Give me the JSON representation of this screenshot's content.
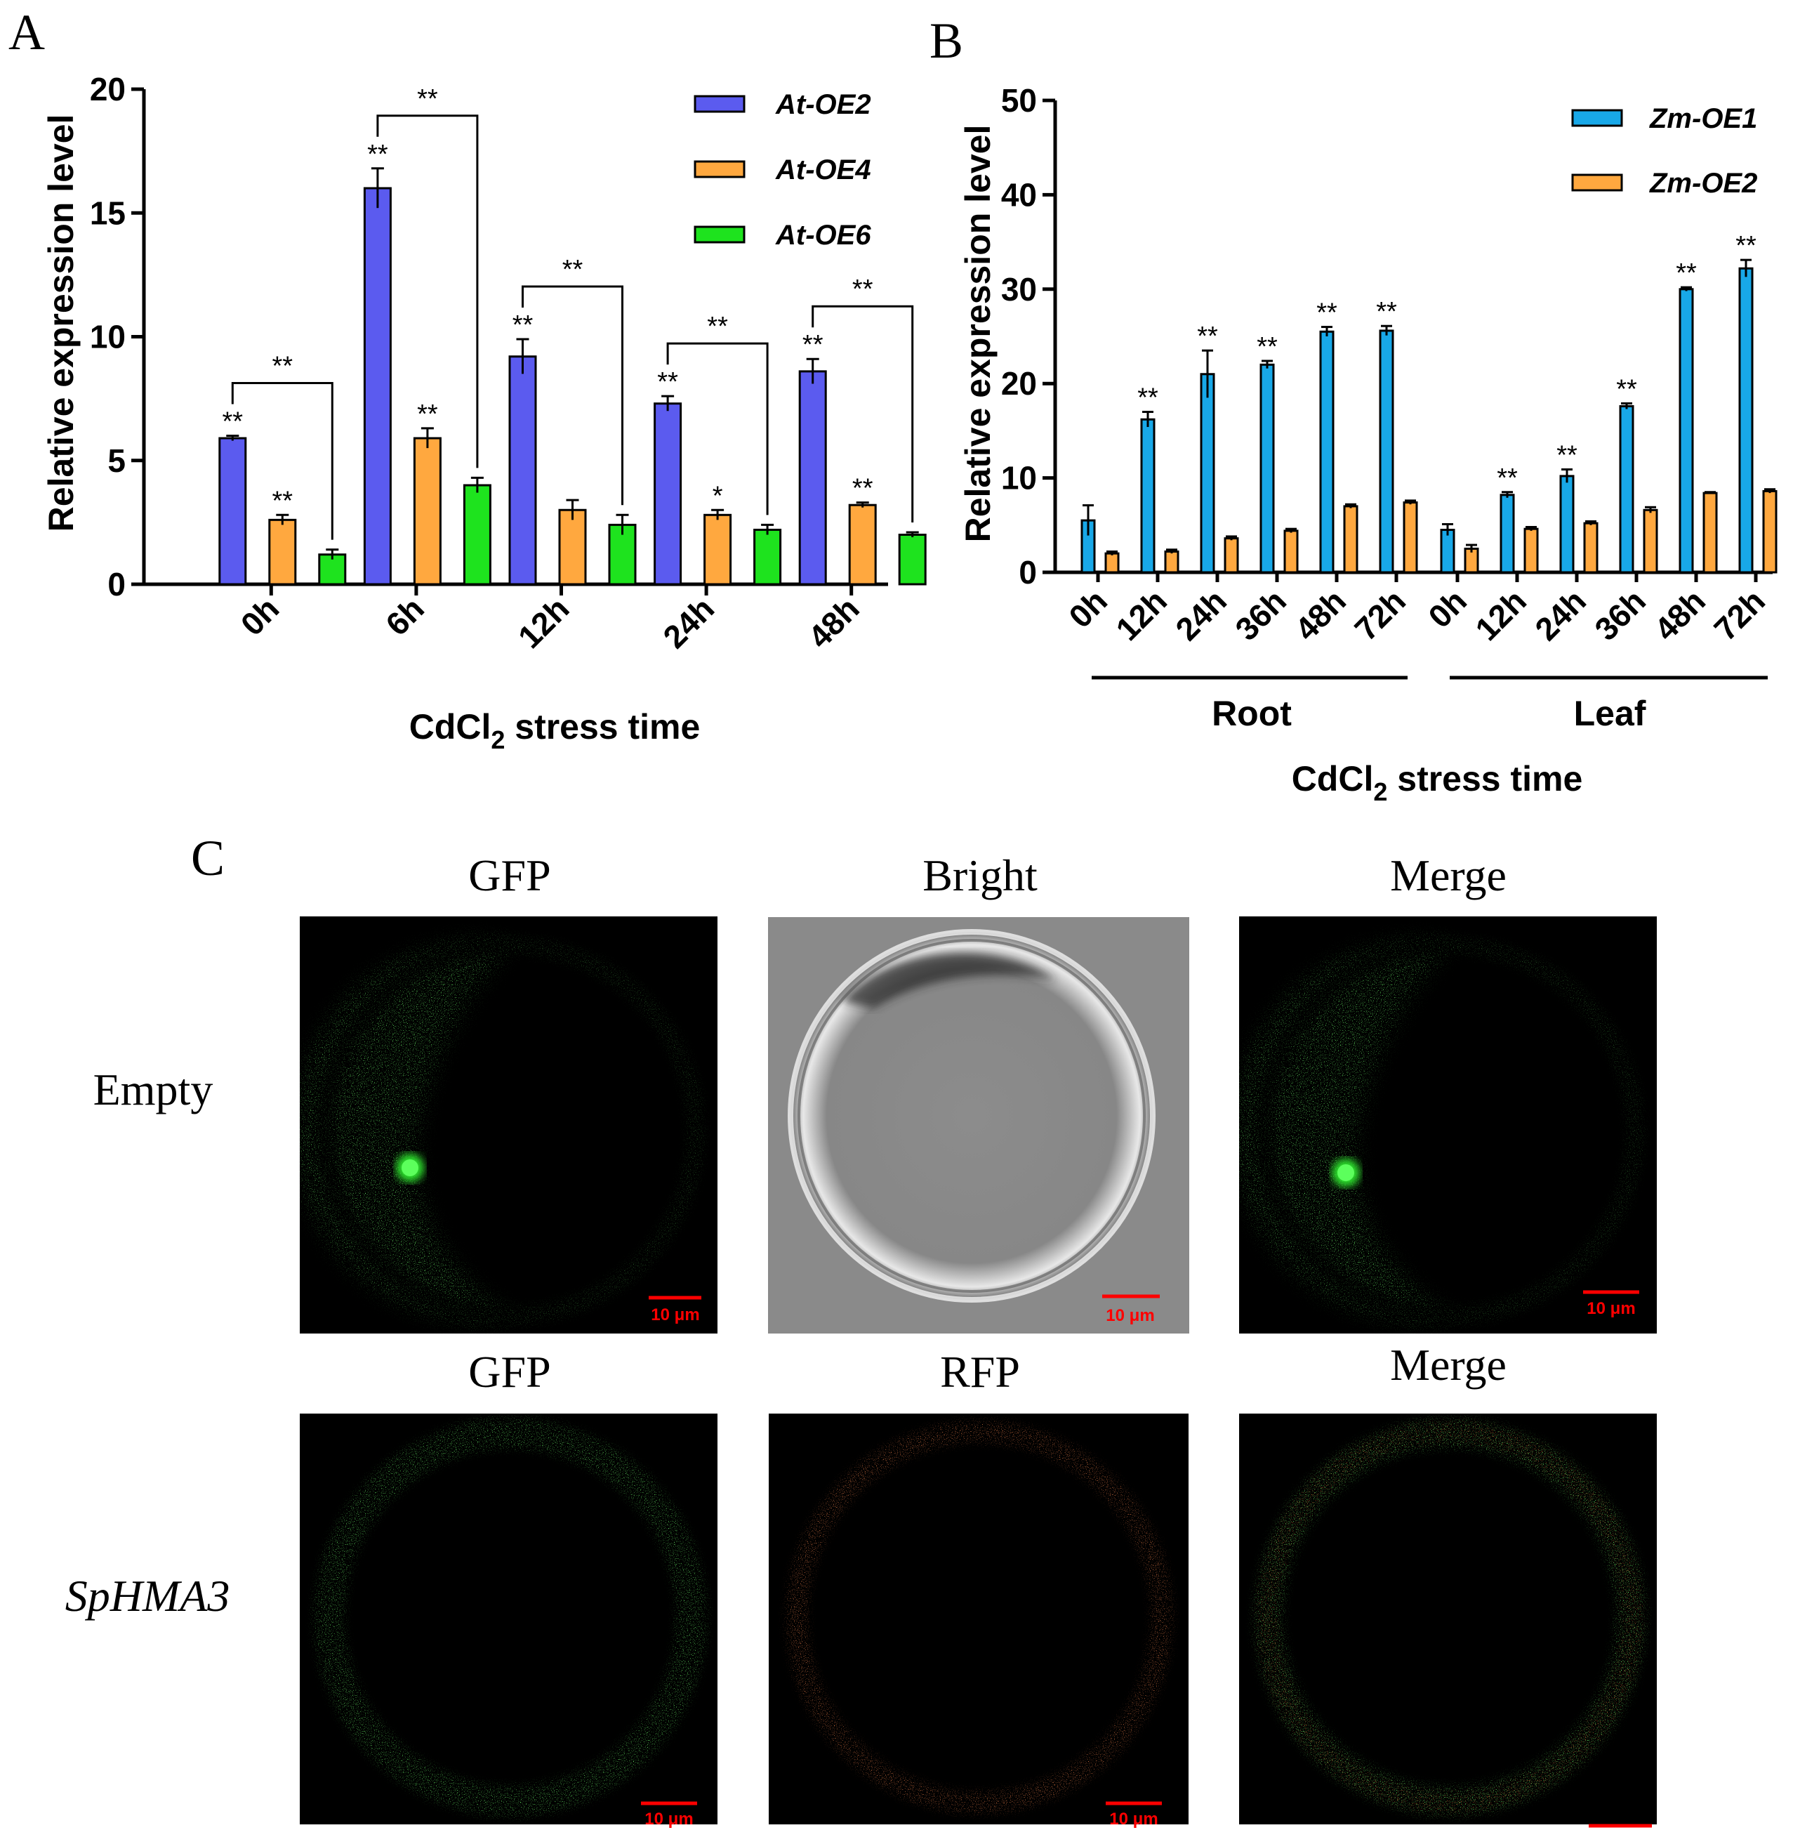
{
  "panel_labels": {
    "a": "A",
    "b": "B",
    "c": "C"
  },
  "chart_data": [
    {
      "type": "bar",
      "panel": "A",
      "xlabel": "CdCl",
      "xlabel_sub": "2",
      "xlabel_rest": " stress time",
      "ylabel": "Relative expression level",
      "ylim": [
        0,
        20
      ],
      "yticks": [
        "0",
        "5",
        "10",
        "15",
        "20"
      ],
      "categories": [
        "0h",
        "6h",
        "12h",
        "24h",
        "48h"
      ],
      "legend_position": "top-right",
      "series": [
        {
          "name": "At-OE2",
          "color": "#5b5bef",
          "values": [
            5.9,
            16.0,
            9.2,
            7.3,
            8.6
          ],
          "errors": [
            0.1,
            0.8,
            0.7,
            0.3,
            0.5
          ],
          "marks": [
            "**",
            "**",
            "**",
            "**",
            "**"
          ]
        },
        {
          "name": "At-OE4",
          "color": "#ffa83f",
          "values": [
            2.6,
            5.9,
            3.0,
            2.8,
            3.2
          ],
          "errors": [
            0.2,
            0.4,
            0.4,
            0.2,
            0.1
          ],
          "marks": [
            "**",
            "**",
            "",
            "*",
            "**"
          ]
        },
        {
          "name": "At-OE6",
          "color": "#1ee31e",
          "values": [
            1.2,
            4.0,
            2.4,
            2.2,
            2.0
          ],
          "errors": [
            0.2,
            0.3,
            0.4,
            0.2,
            0.1
          ],
          "marks": [
            "",
            "",
            "",
            "",
            ""
          ]
        }
      ],
      "brackets": [
        "**",
        "**",
        "**",
        "**",
        "**"
      ]
    },
    {
      "type": "bar",
      "panel": "B",
      "xlabel": "CdCl",
      "xlabel_sub": "2",
      "xlabel_rest": " stress time",
      "ylabel": "Relative expression level",
      "ylim": [
        0,
        50
      ],
      "yticks": [
        "0",
        "10",
        "20",
        "30",
        "40",
        "50"
      ],
      "categories": [
        "0h",
        "12h",
        "24h",
        "36h",
        "48h",
        "72h",
        "0h",
        "12h",
        "24h",
        "36h",
        "48h",
        "72h"
      ],
      "groups": [
        {
          "label": "Root"
        },
        {
          "label": "Leaf"
        }
      ],
      "legend_position": "top-right",
      "series": [
        {
          "name": "Zm-OE1",
          "color": "#18a8e8",
          "values": [
            5.5,
            16.2,
            21.0,
            22.0,
            25.5,
            25.6,
            4.5,
            8.2,
            10.2,
            17.6,
            30.0,
            32.2
          ],
          "errors": [
            1.6,
            0.8,
            2.5,
            0.4,
            0.5,
            0.5,
            0.6,
            0.3,
            0.7,
            0.3,
            0.2,
            0.9
          ],
          "marks": [
            "",
            "**",
            "**",
            "**",
            "**",
            "**",
            "",
            "**",
            "**",
            "**",
            "**",
            "**"
          ]
        },
        {
          "name": "Zm-OE2",
          "color": "#ffa83f",
          "values": [
            2.0,
            2.2,
            3.6,
            4.4,
            7.0,
            7.4,
            2.5,
            4.6,
            5.2,
            6.6,
            8.4,
            8.6
          ],
          "errors": [
            0.2,
            0.2,
            0.2,
            0.2,
            0.2,
            0.2,
            0.4,
            0.2,
            0.2,
            0.3,
            0.1,
            0.2
          ],
          "marks": [
            "",
            "",
            "",
            "",
            "",
            "",
            "",
            "",
            "",
            "",
            "",
            ""
          ]
        }
      ]
    }
  ],
  "microscopy": {
    "columns_row1": [
      "GFP",
      "Bright",
      "Merge"
    ],
    "columns_row2": [
      "GFP",
      "RFP",
      "Merge"
    ],
    "row_labels": [
      "Empty",
      "SpHMA3"
    ],
    "scale_bar_label": "10 μm",
    "colors": {
      "gfp": "#2ee82e",
      "rfp": "#ff3a1a",
      "scale": "#ff0000"
    }
  }
}
